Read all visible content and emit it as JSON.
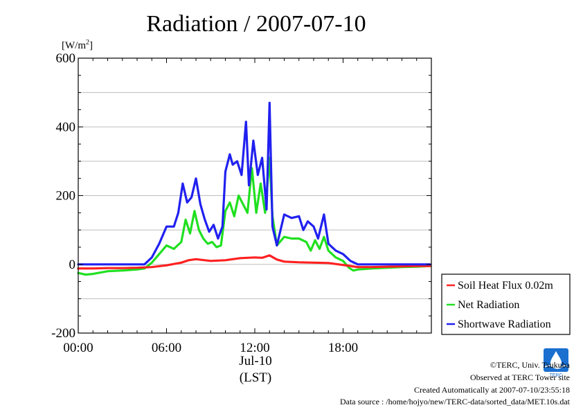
{
  "chart_data": {
    "type": "line",
    "title": "Radiation / 2007-07-10",
    "ylabel_unit": "[W/m",
    "ylabel_unit_sup": "2",
    "ylabel_unit_close": "]",
    "x_tick_labels": [
      "00:00",
      "06:00",
      "12:00",
      "18:00"
    ],
    "x_ticks_hours": [
      0,
      6,
      12,
      18
    ],
    "x_date_label": "Jul-10",
    "x_axis_label": "(LST)",
    "xlim_hours": [
      0,
      24
    ],
    "ylim": [
      -200,
      600
    ],
    "y_ticks": [
      -200,
      0,
      200,
      400,
      600
    ],
    "grid": true,
    "legend_position": "lower-right outside",
    "series": [
      {
        "name": "Soil Heat Flux 0.02m",
        "color": "#ff2020",
        "x": [
          0,
          1,
          2,
          3,
          4,
          5,
          6,
          7,
          7.5,
          8,
          9,
          10,
          11,
          12,
          12.5,
          13,
          13.5,
          14,
          15,
          16,
          17,
          18,
          19,
          20,
          21,
          22,
          23,
          23.9
        ],
        "y": [
          -12,
          -12,
          -11,
          -11,
          -10,
          -8,
          -3,
          5,
          12,
          15,
          10,
          12,
          18,
          20,
          19,
          26,
          14,
          8,
          6,
          5,
          4,
          -2,
          -8,
          -8,
          -7,
          -6,
          -5,
          -5
        ]
      },
      {
        "name": "Net Radiation",
        "color": "#20e020",
        "x": [
          0,
          0.5,
          1,
          2,
          3,
          4,
          4.5,
          5,
          5.5,
          6,
          6.5,
          7,
          7.3,
          7.6,
          7.9,
          8.2,
          8.5,
          8.8,
          9.1,
          9.4,
          9.7,
          10,
          10.3,
          10.6,
          10.9,
          11.2,
          11.5,
          11.8,
          12.1,
          12.4,
          12.7,
          13,
          13.2,
          13.5,
          14,
          14.5,
          15,
          15.5,
          15.8,
          16.1,
          16.4,
          16.7,
          17,
          17.5,
          18,
          18.4,
          18.7,
          19,
          20,
          21,
          22,
          23,
          23.9
        ],
        "y": [
          -25,
          -30,
          -28,
          -20,
          -18,
          -15,
          -12,
          5,
          30,
          55,
          45,
          65,
          130,
          90,
          155,
          100,
          75,
          60,
          65,
          50,
          55,
          155,
          180,
          140,
          200,
          175,
          150,
          280,
          150,
          235,
          150,
          310,
          140,
          55,
          80,
          75,
          75,
          65,
          40,
          70,
          45,
          80,
          40,
          20,
          10,
          -10,
          -18,
          -15,
          -12,
          -10,
          -8,
          -7,
          -5
        ]
      },
      {
        "name": "Shortwave Radiation",
        "color": "#2020f0",
        "x": [
          0,
          1,
          2,
          3,
          4,
          4.5,
          5,
          5.5,
          6,
          6.5,
          6.8,
          7.1,
          7.4,
          7.7,
          8,
          8.3,
          8.6,
          8.9,
          9.2,
          9.5,
          9.8,
          10,
          10.3,
          10.5,
          10.8,
          11.1,
          11.4,
          11.6,
          11.9,
          12.2,
          12.5,
          12.8,
          13,
          13.2,
          13.5,
          14,
          14.5,
          15,
          15.3,
          15.6,
          16,
          16.3,
          16.7,
          17,
          17.5,
          18,
          18.5,
          19,
          20,
          21,
          22,
          23,
          23.9
        ],
        "y": [
          0,
          0,
          0,
          0,
          0,
          0,
          20,
          60,
          110,
          110,
          150,
          235,
          180,
          195,
          250,
          175,
          130,
          95,
          115,
          75,
          110,
          270,
          320,
          290,
          300,
          260,
          415,
          230,
          360,
          260,
          310,
          160,
          470,
          110,
          55,
          145,
          135,
          140,
          100,
          125,
          110,
          75,
          145,
          60,
          40,
          30,
          10,
          0,
          0,
          0,
          0,
          0,
          0
        ]
      }
    ]
  },
  "credits": {
    "copyright": "©TERC, Univ. Tsukuba",
    "observed": "Observed at TERC Tower site",
    "created": "Created Automatically at 2007-07-10/23:55:18",
    "source": "Data source : /home/hojyo/new/TERC-data/sorted_data/MET.10s.dat",
    "logo_text": "TERC",
    "logo_color": "#1a6fcf"
  }
}
